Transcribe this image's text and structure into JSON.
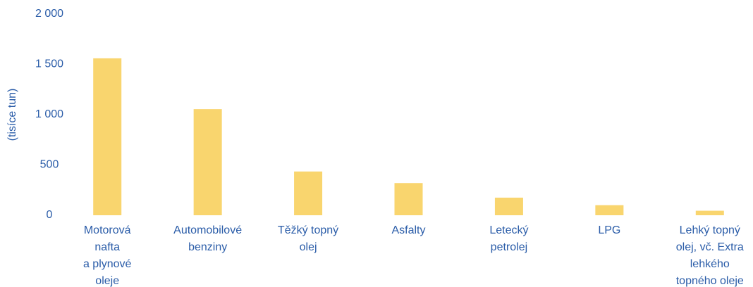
{
  "chart_data": {
    "type": "bar",
    "y_label": "(tisíce tun)",
    "categories": [
      "Motorová\nnafta\na plynové\noleje",
      "Automobilové\nbenziny",
      "Těžký topný\nolej",
      "Asfalty",
      "Letecký\npetrolej",
      "LPG",
      "Lehký topný\nolej, vč. Extra\nlehkého\ntopného oleje"
    ],
    "values": [
      1560,
      1055,
      435,
      320,
      175,
      100,
      45
    ],
    "color": "#f9d56e",
    "ylim": [
      0,
      2000
    ],
    "yticks": [
      0,
      500,
      {
        "value": 1000,
        "label": "1 000"
      },
      {
        "value": 1500,
        "label": "1 500"
      },
      {
        "value": 2000,
        "label": "2 000"
      }
    ],
    "grid": false
  }
}
